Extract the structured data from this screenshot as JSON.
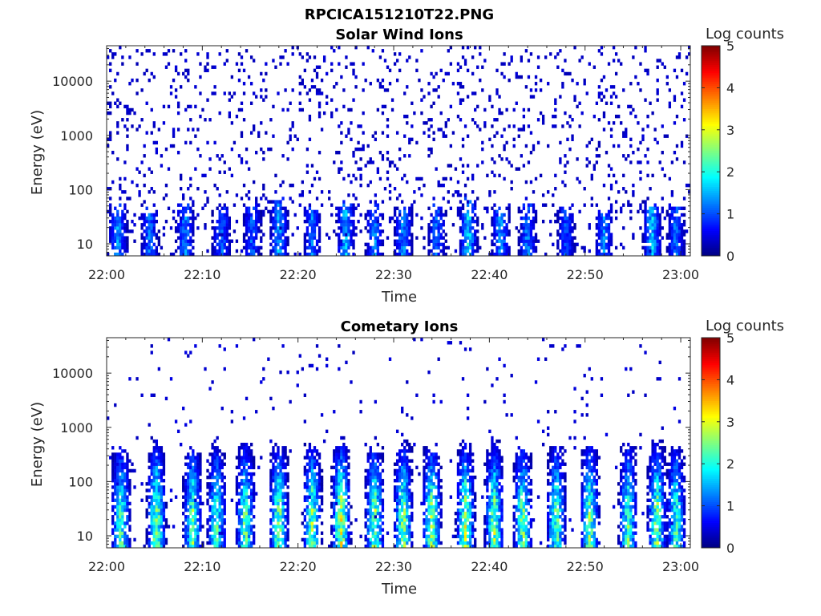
{
  "figure_title": "RPCICA151210T22.PNG",
  "colors": {
    "axis": "#262626",
    "background": "#ffffff"
  },
  "chart_data": [
    {
      "type": "heatmap",
      "title": "Solar Wind Ions",
      "xlabel": "Time",
      "ylabel": "Energy (eV)",
      "x_tick_labels": [
        "22:00",
        "22:10",
        "22:20",
        "22:30",
        "22:40",
        "22:50",
        "23:00"
      ],
      "x_range": [
        "22:00",
        "23:01"
      ],
      "y_tick_labels": [
        "10",
        "100",
        "1000",
        "10000"
      ],
      "y_scale": "log",
      "y_range": [
        6,
        45000
      ],
      "colorbar": {
        "label": "Log counts",
        "ticks": [
          "0",
          "1",
          "2",
          "3",
          "4",
          "5"
        ],
        "range": [
          0,
          5
        ],
        "colormap": "jet"
      },
      "bursts": [
        {
          "t": 1.2,
          "peak": 1.5,
          "top": 30
        },
        {
          "t": 4.5,
          "peak": 1.3,
          "top": 30
        },
        {
          "t": 8.2,
          "peak": 1.4,
          "top": 40
        },
        {
          "t": 12.0,
          "peak": 1.3,
          "top": 30
        },
        {
          "t": 15.2,
          "peak": 1.2,
          "top": 30
        },
        {
          "t": 18.0,
          "peak": 1.6,
          "top": 40
        },
        {
          "t": 21.5,
          "peak": 1.3,
          "top": 30
        },
        {
          "t": 25.0,
          "peak": 1.7,
          "top": 40
        },
        {
          "t": 28.0,
          "peak": 1.4,
          "top": 30
        },
        {
          "t": 31.0,
          "peak": 1.5,
          "top": 30
        },
        {
          "t": 34.5,
          "peak": 1.3,
          "top": 30
        },
        {
          "t": 37.8,
          "peak": 1.9,
          "top": 40
        },
        {
          "t": 41.2,
          "peak": 1.5,
          "top": 30
        },
        {
          "t": 44.0,
          "peak": 1.4,
          "top": 30
        },
        {
          "t": 48.0,
          "peak": 1.2,
          "top": 30
        },
        {
          "t": 52.0,
          "peak": 1.4,
          "top": 30
        },
        {
          "t": 57.0,
          "peak": 1.8,
          "top": 40
        },
        {
          "t": 59.5,
          "peak": 1.3,
          "top": 30
        }
      ],
      "background_log_counts": 0.25,
      "background_density": 0.09
    },
    {
      "type": "heatmap",
      "title": "Cometary Ions",
      "xlabel": "Time",
      "ylabel": "Energy (eV)",
      "x_tick_labels": [
        "22:00",
        "22:10",
        "22:20",
        "22:30",
        "22:40",
        "22:50",
        "23:00"
      ],
      "x_range": [
        "22:00",
        "23:01"
      ],
      "y_tick_labels": [
        "10",
        "100",
        "1000",
        "10000"
      ],
      "y_scale": "log",
      "y_range": [
        6,
        45000
      ],
      "colorbar": {
        "label": "Log counts",
        "ticks": [
          "0",
          "1",
          "2",
          "3",
          "4",
          "5"
        ],
        "range": [
          0,
          5
        ],
        "colormap": "jet"
      },
      "bursts": [
        {
          "t": 1.5,
          "peak": 2.5,
          "top": 250
        },
        {
          "t": 5.2,
          "peak": 2.8,
          "top": 400
        },
        {
          "t": 9.0,
          "peak": 2.6,
          "top": 250
        },
        {
          "t": 11.5,
          "peak": 2.4,
          "top": 300
        },
        {
          "t": 14.5,
          "peak": 2.6,
          "top": 350
        },
        {
          "t": 18.0,
          "peak": 2.8,
          "top": 300
        },
        {
          "t": 21.5,
          "peak": 2.7,
          "top": 300
        },
        {
          "t": 24.5,
          "peak": 3.1,
          "top": 400
        },
        {
          "t": 28.0,
          "peak": 2.8,
          "top": 300
        },
        {
          "t": 31.0,
          "peak": 2.8,
          "top": 350
        },
        {
          "t": 34.0,
          "peak": 2.9,
          "top": 300
        },
        {
          "t": 37.5,
          "peak": 2.9,
          "top": 350
        },
        {
          "t": 40.5,
          "peak": 2.8,
          "top": 350
        },
        {
          "t": 43.5,
          "peak": 2.7,
          "top": 250
        },
        {
          "t": 47.0,
          "peak": 2.6,
          "top": 300
        },
        {
          "t": 50.5,
          "peak": 2.7,
          "top": 300
        },
        {
          "t": 54.5,
          "peak": 2.5,
          "top": 300
        },
        {
          "t": 57.5,
          "peak": 2.8,
          "top": 400
        },
        {
          "t": 59.5,
          "peak": 2.4,
          "top": 300
        }
      ],
      "background_log_counts": 0.3,
      "background_density": 0.02
    }
  ]
}
